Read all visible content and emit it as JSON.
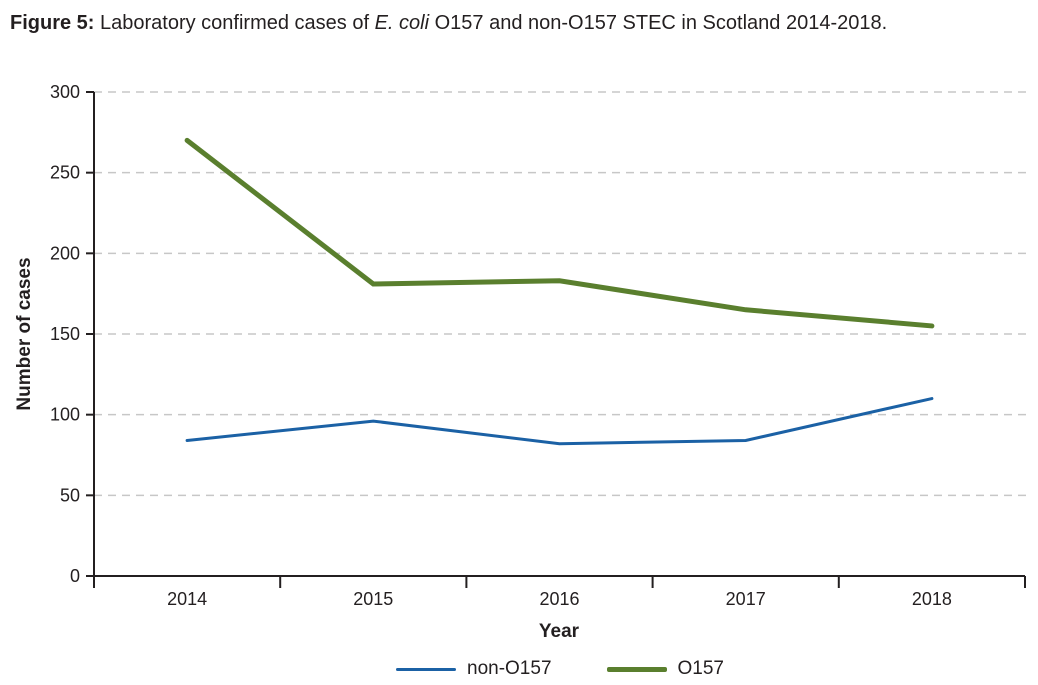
{
  "figure": {
    "title": {
      "label": "Figure 5:",
      "before_italic": " Laboratory confirmed cases of ",
      "italic": "E. coli",
      "after_italic": " O157 and non-O157 STEC in Scotland 2014-2018."
    }
  },
  "chart_data": {
    "type": "line",
    "categories": [
      "2014",
      "2015",
      "2016",
      "2017",
      "2018"
    ],
    "series": [
      {
        "name": "non-O157",
        "color": "#1b61a5",
        "stroke_width": 3,
        "values": [
          84,
          96,
          82,
          84,
          110
        ]
      },
      {
        "name": "O157",
        "color": "#5a7f2e",
        "stroke_width": 5,
        "values": [
          270,
          181,
          183,
          165,
          155
        ]
      }
    ],
    "xlabel": "Year",
    "ylabel": "Number of cases",
    "ylim": [
      0,
      300
    ],
    "ytick_step": 50,
    "grid": "horizontal-dashed",
    "grid_color": "#c7c7c7",
    "axis_color": "#231f20",
    "legend_position": "bottom"
  }
}
